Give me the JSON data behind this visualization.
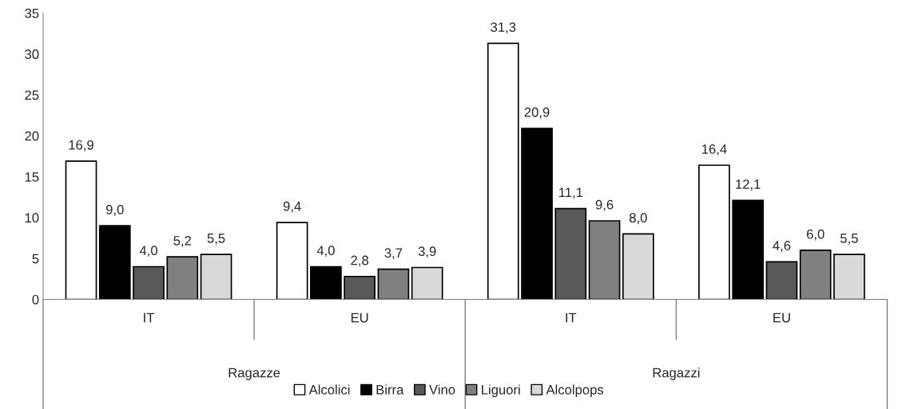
{
  "chart_data": {
    "type": "bar",
    "categories": [
      "IT",
      "EU",
      "IT",
      "EU"
    ],
    "series": [
      {
        "name": "Alcolici",
        "color": "#ffffff",
        "values": [
          16.9,
          9.4,
          31.3,
          16.4
        ],
        "value_labels": [
          "16,9",
          "9,4",
          "31,3",
          "16,4"
        ]
      },
      {
        "name": "Birra",
        "color": "#000000",
        "values": [
          9.0,
          4.0,
          20.9,
          12.1
        ],
        "value_labels": [
          "9,0",
          "4,0",
          "20,9",
          "12,1"
        ]
      },
      {
        "name": "Vino",
        "color": "#595959",
        "values": [
          4.0,
          2.8,
          11.1,
          4.6
        ],
        "value_labels": [
          "4,0",
          "2,8",
          "11,1",
          "4,6"
        ]
      },
      {
        "name": "Liguori",
        "color": "#808080",
        "values": [
          5.2,
          3.7,
          9.6,
          6.0
        ],
        "value_labels": [
          "5,2",
          "3,7",
          "9,6",
          "6,0"
        ]
      },
      {
        "name": "Alcolpops",
        "color": "#d9d9d9",
        "values": [
          5.5,
          3.9,
          8.0,
          5.5
        ],
        "value_labels": [
          "5,5",
          "3,9",
          "8,0",
          "5,5"
        ]
      }
    ],
    "annotations": [
      "Ragazze",
      "Ragazzi"
    ],
    "ylim": [
      0,
      35
    ],
    "yticks": [
      0,
      5,
      10,
      15,
      20,
      25,
      30,
      35
    ],
    "grid": false,
    "legend": "bottom"
  }
}
